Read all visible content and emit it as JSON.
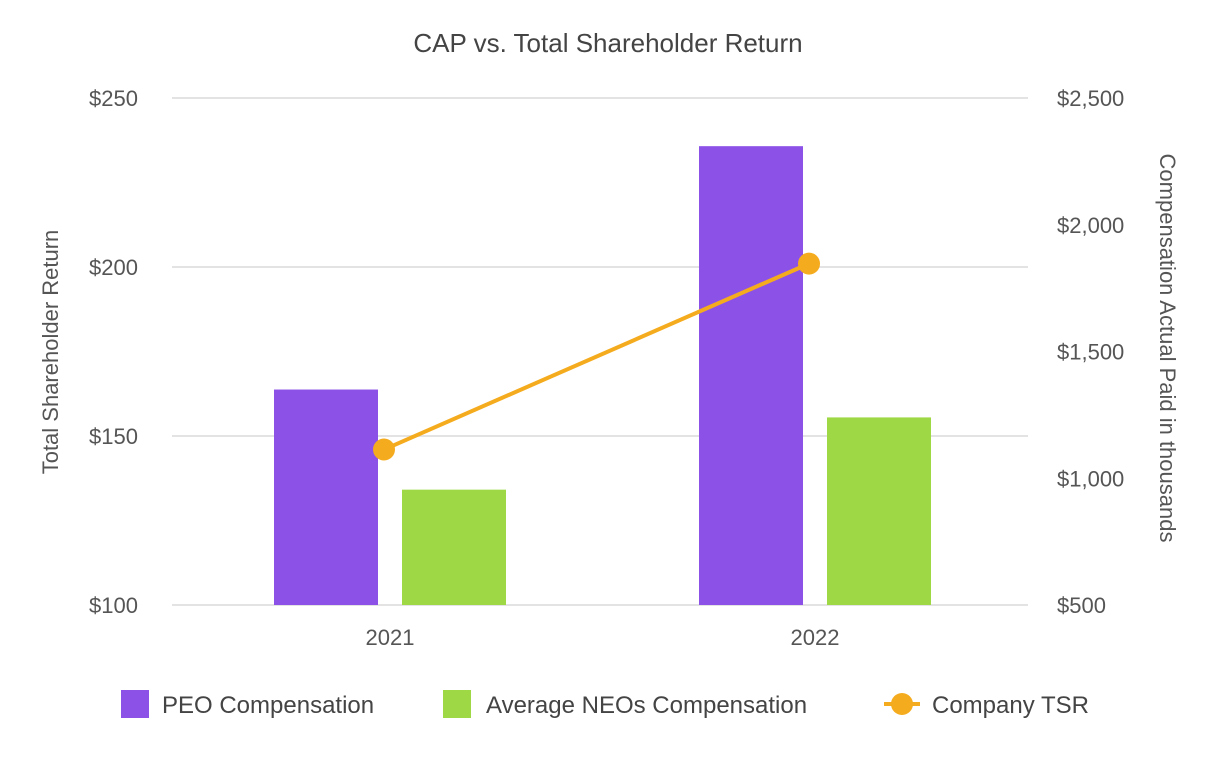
{
  "chart_data": {
    "type": "bar",
    "title": "CAP vs. Total Shareholder Return",
    "categories": [
      "2021",
      "2022"
    ],
    "left_axis": {
      "label": "Total Shareholder Return",
      "range": [
        100,
        250
      ],
      "ticks": [
        100,
        150,
        200,
        250
      ],
      "tick_labels": [
        "$100",
        "$150",
        "$200",
        "$250"
      ]
    },
    "right_axis": {
      "label": "Compensation Actual Paid in thousands",
      "range": [
        500,
        2500
      ],
      "ticks": [
        500,
        1000,
        1500,
        2000,
        2500
      ],
      "tick_labels": [
        "$500",
        "$1,000",
        "$1,500",
        "$2,000",
        "$2,500"
      ]
    },
    "series": [
      {
        "name": "PEO Compensation",
        "type": "bar",
        "axis": "right",
        "color": "#8c52e8",
        "values": [
          1350,
          2310
        ]
      },
      {
        "name": "Average NEOs Compensation",
        "type": "bar",
        "axis": "right",
        "color": "#9fd845",
        "values": [
          955,
          1240
        ]
      },
      {
        "name": "Company TSR",
        "type": "line",
        "axis": "left",
        "color": "#f5ab1e",
        "values": [
          146,
          201
        ]
      }
    ],
    "legend_position": "bottom",
    "grid": true
  }
}
